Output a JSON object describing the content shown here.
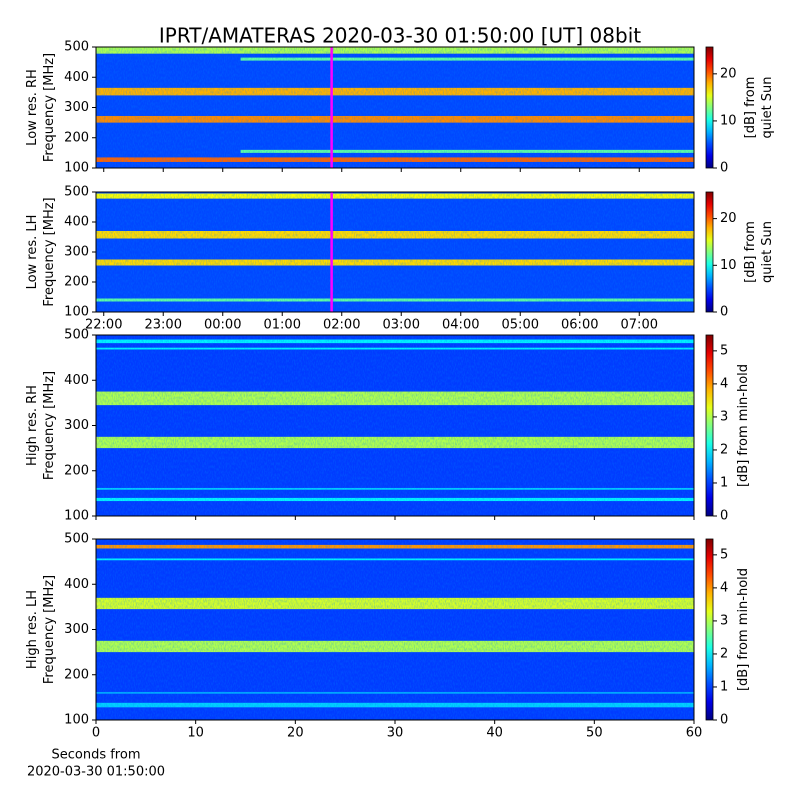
{
  "title": "IPRT/AMATERAS 2020-03-30 01:50:00 [UT]   08bit",
  "chart_data": [
    {
      "type": "heatmap",
      "ylabel": [
        "Low res. RH",
        "Frequency [MHz]"
      ],
      "xlim": [
        21.87,
        31.92
      ],
      "xticks": [
        22,
        23,
        24,
        25,
        26,
        27,
        28,
        29,
        30,
        31
      ],
      "xtick_labels": false,
      "ylim": [
        100,
        500
      ],
      "yticks": [
        100,
        200,
        300,
        400,
        500
      ],
      "zlim": [
        0,
        25.7
      ],
      "zticks": [
        0,
        10,
        20
      ],
      "zlabel": [
        "[dB] from",
        "quiet Sun"
      ],
      "colormap": "jet",
      "marker": 25.83,
      "marker_color": "#ff00ff",
      "background": 5,
      "bands": [
        {
          "from": 478,
          "to": 500,
          "level": 14
        },
        {
          "from": 455,
          "to": 465,
          "level": 12,
          "x": [
            24.3,
            31.92
          ]
        },
        {
          "from": 340,
          "to": 365,
          "level": 18
        },
        {
          "from": 250,
          "to": 272,
          "level": 19
        },
        {
          "from": 150,
          "to": 160,
          "level": 12,
          "x": [
            24.3,
            31.92
          ]
        },
        {
          "from": 120,
          "to": 135,
          "level": 20
        }
      ]
    },
    {
      "type": "heatmap",
      "ylabel": [
        "Low res. LH",
        "Frequency [MHz]"
      ],
      "xlim": [
        21.87,
        31.92
      ],
      "xticks": [
        {
          "value": 22,
          "label": "22:00"
        },
        {
          "value": 23,
          "label": "23:00"
        },
        {
          "value": 24,
          "label": "00:00"
        },
        {
          "value": 25,
          "label": "01:00"
        },
        {
          "value": 26,
          "label": "02:00"
        },
        {
          "value": 27,
          "label": "03:00"
        },
        {
          "value": 28,
          "label": "04:00"
        },
        {
          "value": 29,
          "label": "05:00"
        },
        {
          "value": 30,
          "label": "06:00"
        },
        {
          "value": 31,
          "label": "07:00"
        }
      ],
      "ylim": [
        100,
        500
      ],
      "yticks": [
        100,
        200,
        300,
        400,
        500
      ],
      "zlim": [
        0,
        25.7
      ],
      "zticks": [
        0,
        10,
        20
      ],
      "zlabel": [
        "[dB] from",
        "quiet Sun"
      ],
      "colormap": "jet",
      "marker": 25.83,
      "marker_color": "#ff00ff",
      "background": 5,
      "bands": [
        {
          "from": 478,
          "to": 495,
          "level": 16
        },
        {
          "from": 345,
          "to": 370,
          "level": 17
        },
        {
          "from": 255,
          "to": 275,
          "level": 17
        },
        {
          "from": 135,
          "to": 145,
          "level": 12
        }
      ]
    },
    {
      "type": "heatmap",
      "ylabel": [
        "High res. RH",
        "Frequency [MHz]"
      ],
      "xlim": [
        0,
        60
      ],
      "xticks": [
        0,
        10,
        20,
        30,
        40,
        50,
        60
      ],
      "xtick_labels": false,
      "ylim": [
        100,
        500
      ],
      "yticks": [
        100,
        200,
        300,
        400,
        500
      ],
      "zlim": [
        0,
        5.48
      ],
      "zticks": [
        0,
        1,
        2,
        3,
        4,
        5
      ],
      "zlabel": [
        "[dB] from min-hold"
      ],
      "colormap": "jet",
      "background": 1,
      "bands": [
        {
          "from": 482,
          "to": 490,
          "level": 2
        },
        {
          "from": 468,
          "to": 472,
          "level": 2
        },
        {
          "from": 345,
          "to": 375,
          "level": 3
        },
        {
          "from": 250,
          "to": 275,
          "level": 3
        },
        {
          "from": 158,
          "to": 162,
          "level": 1.8
        },
        {
          "from": 133,
          "to": 140,
          "level": 2
        }
      ]
    },
    {
      "type": "heatmap",
      "ylabel": [
        "High res. LH",
        "Frequency [MHz]"
      ],
      "xlabel": [
        "Seconds from",
        "2020-03-30 01:50:00"
      ],
      "xlim": [
        0,
        60
      ],
      "xticks": [
        0,
        10,
        20,
        30,
        40,
        50,
        60
      ],
      "xtick_labels": true,
      "ylim": [
        100,
        500
      ],
      "yticks": [
        100,
        200,
        300,
        400,
        500
      ],
      "zlim": [
        0,
        5.48
      ],
      "zticks": [
        0,
        1,
        2,
        3,
        4,
        5
      ],
      "zlabel": [
        "[dB] from min-hold"
      ],
      "colormap": "jet",
      "background": 1,
      "bands": [
        {
          "from": 479,
          "to": 487,
          "level": 4
        },
        {
          "from": 453,
          "to": 457,
          "level": 2
        },
        {
          "from": 345,
          "to": 370,
          "level": 3.2
        },
        {
          "from": 250,
          "to": 275,
          "level": 3
        },
        {
          "from": 158,
          "to": 162,
          "level": 1.6
        },
        {
          "from": 128,
          "to": 138,
          "level": 1.8
        }
      ]
    }
  ]
}
